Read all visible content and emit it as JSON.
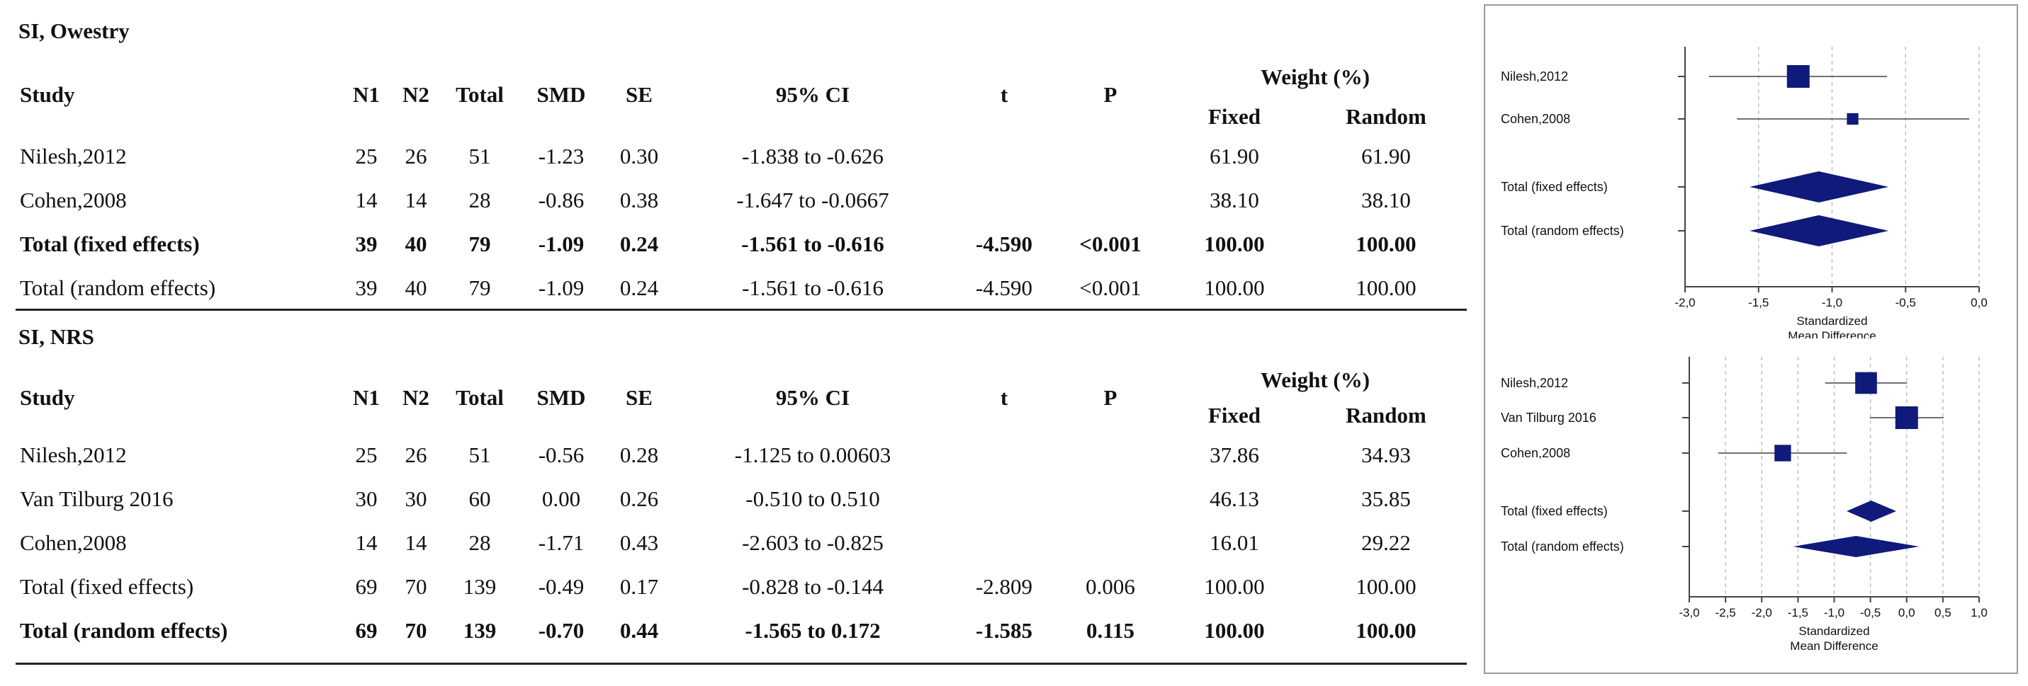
{
  "colors": {
    "marker": "#0f1a7a",
    "grid": "#bdbdbd",
    "axis": "#444444",
    "text": "#111111"
  },
  "table1": {
    "title": "SI, Owestry",
    "headers": {
      "study": "Study",
      "n1": "N1",
      "n2": "N2",
      "total": "Total",
      "smd": "SMD",
      "se": "SE",
      "ci": "95% CI",
      "t": "t",
      "p": "P",
      "weight": "Weight (%)",
      "fixed": "Fixed",
      "random": "Random"
    },
    "rows": [
      {
        "study": "Nilesh,2012",
        "n1": "25",
        "n2": "26",
        "total": "51",
        "smd": "-1.23",
        "se": "0.30",
        "ci": "-1.838  to  -0.626",
        "t": "",
        "p": "",
        "fixed": "61.90",
        "random": "61.90",
        "bold": false,
        "p_bold": false
      },
      {
        "study": "Cohen,2008",
        "n1": "14",
        "n2": "14",
        "total": "28",
        "smd": "-0.86",
        "se": "0.38",
        "ci": "-1.647  to  -0.0667",
        "t": "",
        "p": "",
        "fixed": "38.10",
        "random": "38.10",
        "bold": false,
        "p_bold": false
      },
      {
        "study": "Total (fixed effects)",
        "n1": "39",
        "n2": "40",
        "total": "79",
        "smd": "-1.09",
        "se": "0.24",
        "ci": "-1.561  to  -0.616",
        "t": "-4.590",
        "p": "<0.001",
        "fixed": "100.00",
        "random": "100.00",
        "bold": true,
        "p_bold": true
      },
      {
        "study": "Total (random effects)",
        "n1": "39",
        "n2": "40",
        "total": "79",
        "smd": "-1.09",
        "se": "0.24",
        "ci": "-1.561  to  -0.616",
        "t": "-4.590",
        "p": "<0.001",
        "fixed": "100.00",
        "random": "100.00",
        "bold": false,
        "p_bold": false
      }
    ]
  },
  "table2": {
    "title": "SI, NRS",
    "headers": {
      "study": "Study",
      "n1": "N1",
      "n2": "N2",
      "total": "Total",
      "smd": "SMD",
      "se": "SE",
      "ci": "95% CI",
      "t": "t",
      "p": "P",
      "weight": "Weight (%)",
      "fixed": "Fixed",
      "random": "Random"
    },
    "rows": [
      {
        "study": "Nilesh,2012",
        "n1": "25",
        "n2": "26",
        "total": "51",
        "smd": "-0.56",
        "se": "0.28",
        "ci": "-1.125  to  0.00603",
        "t": "",
        "p": "",
        "fixed": "37.86",
        "random": "34.93",
        "bold": false,
        "p_bold": false
      },
      {
        "study": "Van Tilburg 2016",
        "n1": "30",
        "n2": "30",
        "total": "60",
        "smd": "0.00",
        "se": "0.26",
        "ci": "-0.510  to  0.510",
        "t": "",
        "p": "",
        "fixed": "46.13",
        "random": "35.85",
        "bold": false,
        "p_bold": false
      },
      {
        "study": "Cohen,2008",
        "n1": "14",
        "n2": "14",
        "total": "28",
        "smd": "-1.71",
        "se": "0.43",
        "ci": "-2.603  to  -0.825",
        "t": "",
        "p": "",
        "fixed": "16.01",
        "random": "29.22",
        "bold": false,
        "p_bold": false
      },
      {
        "study": "Total (fixed effects)",
        "n1": "69",
        "n2": "70",
        "total": "139",
        "smd": "-0.49",
        "se": "0.17",
        "ci": "-0.828  to  -0.144",
        "t": "-2.809",
        "p": "0.006",
        "fixed": "100.00",
        "random": "100.00",
        "bold": false,
        "p_bold": false
      },
      {
        "study": "Total (random effects)",
        "n1": "69",
        "n2": "70",
        "total": "139",
        "smd": "-0.70",
        "se": "0.44",
        "ci": "-1.565  to  0.172",
        "t": "-1.585",
        "p": "0.115",
        "fixed": "100.00",
        "random": "100.00",
        "bold": true,
        "p_bold": true
      }
    ]
  },
  "chart_data": [
    {
      "type": "forest",
      "title": "",
      "xlabel": "Standardized\nMean Difference",
      "xlim": [
        -2.0,
        0.0
      ],
      "xticks": [
        -2.0,
        -1.5,
        -1.0,
        -0.5,
        0.0
      ],
      "xtick_labels": [
        "-2,0",
        "-1,5",
        "-1,0",
        "-0,5",
        "0,0"
      ],
      "grid": true,
      "studies": [
        {
          "name": "Nilesh,2012",
          "estimate": -1.23,
          "lower": -1.838,
          "upper": -0.626,
          "weight": 61.9
        },
        {
          "name": "Cohen,2008",
          "estimate": -0.86,
          "lower": -1.647,
          "upper": -0.0667,
          "weight": 38.1
        }
      ],
      "summaries": [
        {
          "name": "Total (fixed effects)",
          "estimate": -1.09,
          "lower": -1.561,
          "upper": -0.616
        },
        {
          "name": "Total (random effects)",
          "estimate": -1.09,
          "lower": -1.561,
          "upper": -0.616
        }
      ]
    },
    {
      "type": "forest",
      "title": "",
      "xlabel": "Standardized\nMean Difference",
      "xlim": [
        -3.0,
        1.0
      ],
      "xticks": [
        -3.0,
        -2.5,
        -2.0,
        -1.5,
        -1.0,
        -0.5,
        0.0,
        0.5,
        1.0
      ],
      "xtick_labels": [
        "-3,0",
        "-2,5",
        "-2,0",
        "-1,5",
        "-1,0",
        "-0,5",
        "0,0",
        "0,5",
        "1,0"
      ],
      "grid": true,
      "studies": [
        {
          "name": "Nilesh,2012",
          "estimate": -0.56,
          "lower": -1.125,
          "upper": 0.00603,
          "weight": 34.93
        },
        {
          "name": "Van Tilburg 2016",
          "estimate": 0.0,
          "lower": -0.51,
          "upper": 0.51,
          "weight": 35.85
        },
        {
          "name": "Cohen,2008",
          "estimate": -1.71,
          "lower": -2.603,
          "upper": -0.825,
          "weight": 29.22
        }
      ],
      "summaries": [
        {
          "name": "Total (fixed effects)",
          "estimate": -0.49,
          "lower": -0.828,
          "upper": -0.144
        },
        {
          "name": "Total (random effects)",
          "estimate": -0.7,
          "lower": -1.565,
          "upper": 0.172
        }
      ]
    }
  ]
}
